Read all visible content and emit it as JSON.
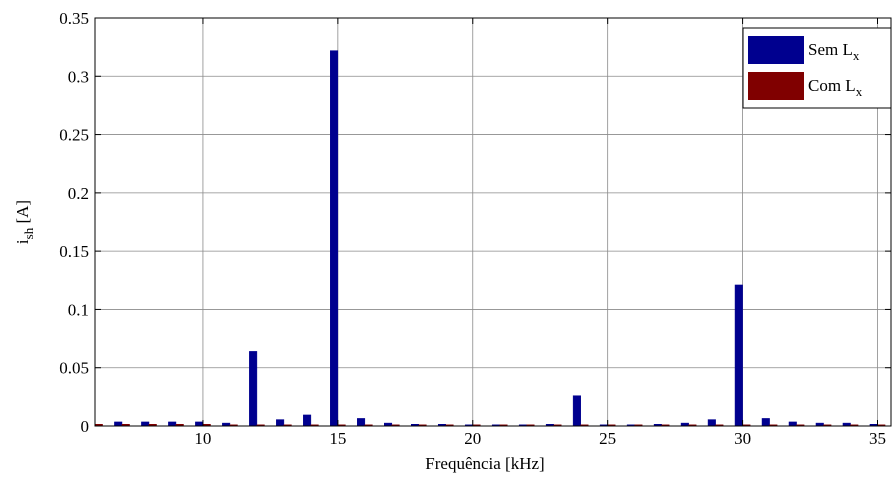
{
  "chart_data": {
    "type": "bar",
    "xlabel": "Frequência [kHz]",
    "ylabel": {
      "main": "i",
      "sub": "sh",
      "suffix": " [A]"
    },
    "xlim": [
      6,
      35.5
    ],
    "ylim": [
      0,
      0.35
    ],
    "xticks": [
      10,
      15,
      20,
      25,
      30,
      35
    ],
    "yticks": [
      0,
      0.05,
      0.1,
      0.15,
      0.2,
      0.25,
      0.3,
      0.35
    ],
    "ytick_labels": [
      "0",
      "0.05",
      "0.1",
      "0.15",
      "0.2",
      "0.25",
      "0.3",
      "0.35"
    ],
    "grid": true,
    "legend_position": "top-right",
    "x": [
      6,
      7,
      8,
      9,
      10,
      11,
      12,
      13,
      14,
      15,
      16,
      17,
      18,
      19,
      20,
      21,
      22,
      23,
      24,
      25,
      26,
      27,
      28,
      29,
      30,
      31,
      32,
      33,
      34,
      35
    ],
    "series": [
      {
        "name": {
          "main": "Sem L",
          "sub": "x"
        },
        "color": "#00008f",
        "values": [
          0.0035,
          0.0035,
          0.0035,
          0.0035,
          0.0035,
          0.0025,
          0.064,
          0.0055,
          0.0095,
          0.322,
          0.0065,
          0.0025,
          0.0015,
          0.0015,
          0.0008,
          0.0008,
          0.0008,
          0.0015,
          0.026,
          0.0008,
          0.0008,
          0.0015,
          0.0025,
          0.0055,
          0.121,
          0.0065,
          0.0035,
          0.0025,
          0.0025,
          0.0015
        ]
      },
      {
        "name": {
          "main": "Com L",
          "sub": "x"
        },
        "color": "#800000",
        "values": [
          0.0015,
          0.0015,
          0.0015,
          0.0015,
          0.0015,
          0.0008,
          0.0008,
          0.0008,
          0.0008,
          0.0008,
          0.0008,
          0.0008,
          0.0008,
          0.0008,
          0.0005,
          0.0005,
          0.0005,
          0.0005,
          0.0005,
          0.0005,
          0.0005,
          0.0005,
          0.0005,
          0.0005,
          0.0008,
          0.0008,
          0.0008,
          0.0008,
          0.0008,
          0.0008
        ]
      }
    ]
  }
}
